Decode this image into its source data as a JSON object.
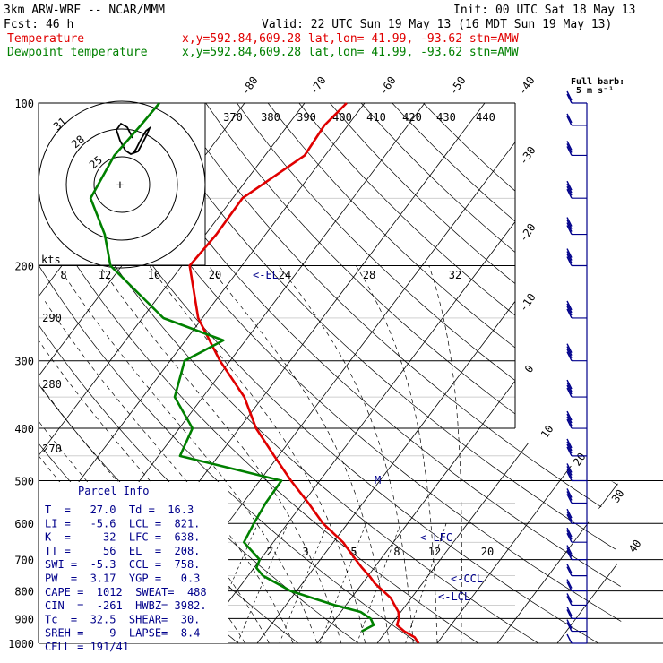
{
  "header": {
    "title": "3km ARW-WRF -- NCAR/MMM",
    "init": "Init: 00 UTC Sat 18 May 13",
    "fcst": "Fcst:   46 h",
    "valid": "Valid: 22 UTC Sun 19 May 13 (16 MDT Sun 19 May 13)",
    "temp_label": "Temperature",
    "dew_label": "Dewpoint temperature",
    "temp_loc": "x,y=592.84,609.28   lat,lon= 41.99, -93.62  stn=AMW",
    "dew_loc": "x,y=592.84,609.28   lat,lon= 41.99, -93.62  stn=AMW"
  },
  "legend": {
    "full_barb": "Full barb:",
    "full_barb_units": "5 m s⁻¹"
  },
  "colors": {
    "temperature": "#e00000",
    "dewpoint": "#008000",
    "annotation": "#00008b",
    "wind": "#00008b",
    "grid": "#000000"
  },
  "hodograph": {
    "ring_labels": [
      "31",
      "28",
      "25"
    ],
    "kts_label": "kts",
    "speed_ticks": [
      "8",
      "12",
      "16",
      "20",
      "24",
      "28",
      "32"
    ]
  },
  "isentropes_top": [
    "370",
    "380",
    "390",
    "400",
    "410",
    "420",
    "430",
    "440"
  ],
  "isentropes_left": [
    "290",
    "280",
    "270"
  ],
  "mixing_ratios": [
    "2",
    "3",
    "5",
    "8",
    "12",
    "20"
  ],
  "annotations": {
    "el": "<-EL",
    "lfc": "<-LFC",
    "ccl": "<-CCL",
    "lcl": "<-LCL",
    "m": "M"
  },
  "parcel_info": {
    "title": "Parcel Info",
    "rows": [
      "T  =   27.0  Td =  16.3",
      "LI =   -5.6  LCL =  821.",
      "K  =     32  LFC =  638.",
      "TT =     56  EL  =  208.",
      "SWI =  -5.3  CCL =  758.",
      "PW  =  3.17  YGP =   0.3",
      "CAPE =  1012  SWEAT=  488",
      "CIN  =  -261  HWBZ= 3982.",
      "Tc  =  32.5  SHEAR=  30.",
      "SREH =    9  LAPSE=  8.4",
      "CELL = 191/41"
    ]
  },
  "chart_data": {
    "type": "line",
    "diagram": "skew-T log-p",
    "yscale": "log",
    "y_ticks": [
      "100",
      "200",
      "300",
      "400",
      "500",
      "600",
      "700",
      "800",
      "900",
      "1000"
    ],
    "y_range_hpa": [
      1000,
      100
    ],
    "x_ticks": [
      "-80",
      "-70",
      "-60",
      "-50",
      "-40",
      "-30",
      "-20",
      "-10",
      "0",
      "10",
      "20",
      "30",
      "40"
    ],
    "series": [
      {
        "name": "Temperature",
        "points": [
          [
            1000,
            26.9
          ],
          [
            975,
            25.5
          ],
          [
            950,
            23.0
          ],
          [
            925,
            21.0
          ],
          [
            900,
            20.5
          ],
          [
            875,
            19.6
          ],
          [
            850,
            18.1
          ],
          [
            825,
            16.6
          ],
          [
            800,
            14.4
          ],
          [
            775,
            12.1
          ],
          [
            750,
            10.2
          ],
          [
            725,
            8.0
          ],
          [
            700,
            5.9
          ],
          [
            650,
            1.6
          ],
          [
            600,
            -4.1
          ],
          [
            550,
            -9.1
          ],
          [
            500,
            -14.8
          ],
          [
            450,
            -20.7
          ],
          [
            400,
            -27.2
          ],
          [
            350,
            -33.1
          ],
          [
            300,
            -41.7
          ],
          [
            250,
            -50.7
          ],
          [
            200,
            -58.7
          ],
          [
            175,
            -58.2
          ],
          [
            150,
            -58.4
          ],
          [
            125,
            -53.4
          ],
          [
            110,
            -53.9
          ],
          [
            100,
            -53.0
          ]
        ]
      },
      {
        "name": "Dewpoint temperature",
        "points": [
          [
            950,
            15.9
          ],
          [
            925,
            17.1
          ],
          [
            900,
            15.8
          ],
          [
            875,
            13.3
          ],
          [
            850,
            8.1
          ],
          [
            825,
            3.6
          ],
          [
            800,
            -1.0
          ],
          [
            775,
            -4.2
          ],
          [
            750,
            -7.5
          ],
          [
            725,
            -9.6
          ],
          [
            700,
            -10.1
          ],
          [
            650,
            -14.9
          ],
          [
            600,
            -15.6
          ],
          [
            550,
            -16.2
          ],
          [
            500,
            -16.4
          ],
          [
            450,
            -36.4
          ],
          [
            400,
            -37.8
          ],
          [
            350,
            -44.7
          ],
          [
            300,
            -47.6
          ],
          [
            275,
            -43.7
          ],
          [
            250,
            -56.5
          ],
          [
            200,
            -71.9
          ],
          [
            175,
            -76.8
          ],
          [
            150,
            -83.7
          ],
          [
            125,
            -85.1
          ],
          [
            110,
            -84.5
          ],
          [
            100,
            -84.2
          ]
        ]
      }
    ],
    "wind_barbs": [
      {
        "p": 1000,
        "speed_ms": 5,
        "dir": 200
      },
      {
        "p": 950,
        "speed_ms": 8,
        "dir": 210
      },
      {
        "p": 900,
        "speed_ms": 10,
        "dir": 220
      },
      {
        "p": 850,
        "speed_ms": 12,
        "dir": 230
      },
      {
        "p": 800,
        "speed_ms": 12,
        "dir": 235
      },
      {
        "p": 750,
        "speed_ms": 12,
        "dir": 240
      },
      {
        "p": 700,
        "speed_ms": 13,
        "dir": 245
      },
      {
        "p": 650,
        "speed_ms": 14,
        "dir": 250
      },
      {
        "p": 600,
        "speed_ms": 15,
        "dir": 250
      },
      {
        "p": 550,
        "speed_ms": 16,
        "dir": 255
      },
      {
        "p": 500,
        "speed_ms": 18,
        "dir": 255
      },
      {
        "p": 450,
        "speed_ms": 20,
        "dir": 260
      },
      {
        "p": 400,
        "speed_ms": 22,
        "dir": 260
      },
      {
        "p": 350,
        "speed_ms": 24,
        "dir": 265
      },
      {
        "p": 300,
        "speed_ms": 26,
        "dir": 265
      },
      {
        "p": 250,
        "speed_ms": 25,
        "dir": 270
      },
      {
        "p": 200,
        "speed_ms": 22,
        "dir": 270
      },
      {
        "p": 175,
        "speed_ms": 20,
        "dir": 270
      },
      {
        "p": 150,
        "speed_ms": 18,
        "dir": 275
      },
      {
        "p": 125,
        "speed_ms": 15,
        "dir": 280
      },
      {
        "p": 110,
        "speed_ms": 12,
        "dir": 280
      },
      {
        "p": 100,
        "speed_ms": 10,
        "dir": 285
      }
    ],
    "grid": true
  }
}
